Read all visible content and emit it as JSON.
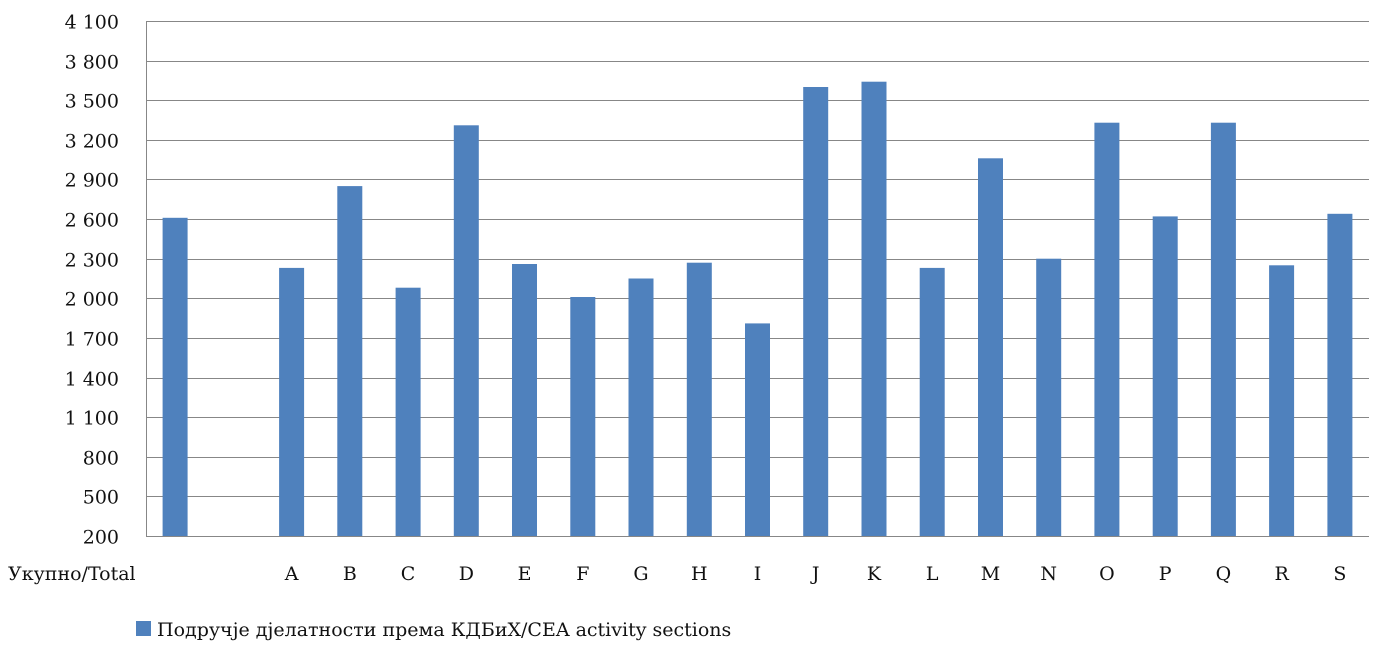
{
  "chart_data": {
    "type": "bar",
    "title": "",
    "xlabel": "",
    "ylabel": "",
    "categories": [
      "Укупно/Total",
      "",
      "A",
      "B",
      "C",
      "D",
      "E",
      "F",
      "G",
      "H",
      "I",
      "J",
      "K",
      "L",
      "M",
      "N",
      "O",
      "P",
      "Q",
      "R",
      "S"
    ],
    "series": [
      {
        "name": "Подручје дјелатности према КДБиХ/CEA activity sections",
        "color": "#4f81bd",
        "values": [
          2610,
          null,
          2230,
          2850,
          2080,
          3310,
          2260,
          2010,
          2150,
          2270,
          1810,
          3600,
          3640,
          2230,
          3060,
          2300,
          3330,
          2620,
          3330,
          2250,
          2640
        ]
      }
    ],
    "ylim": [
      200,
      4100
    ],
    "yticks": [
      200,
      500,
      800,
      1100,
      1400,
      1700,
      2000,
      2300,
      2600,
      2900,
      3200,
      3500,
      3800,
      4100
    ],
    "ytick_labels": [
      "200",
      "500",
      "800",
      "1 100",
      "1 400",
      "1 700",
      "2 000",
      "2 300",
      "2 600",
      "2 900",
      "3 200",
      "3 500",
      "3 800",
      "4 100"
    ],
    "grid": true,
    "legend_position": "bottom-center"
  }
}
